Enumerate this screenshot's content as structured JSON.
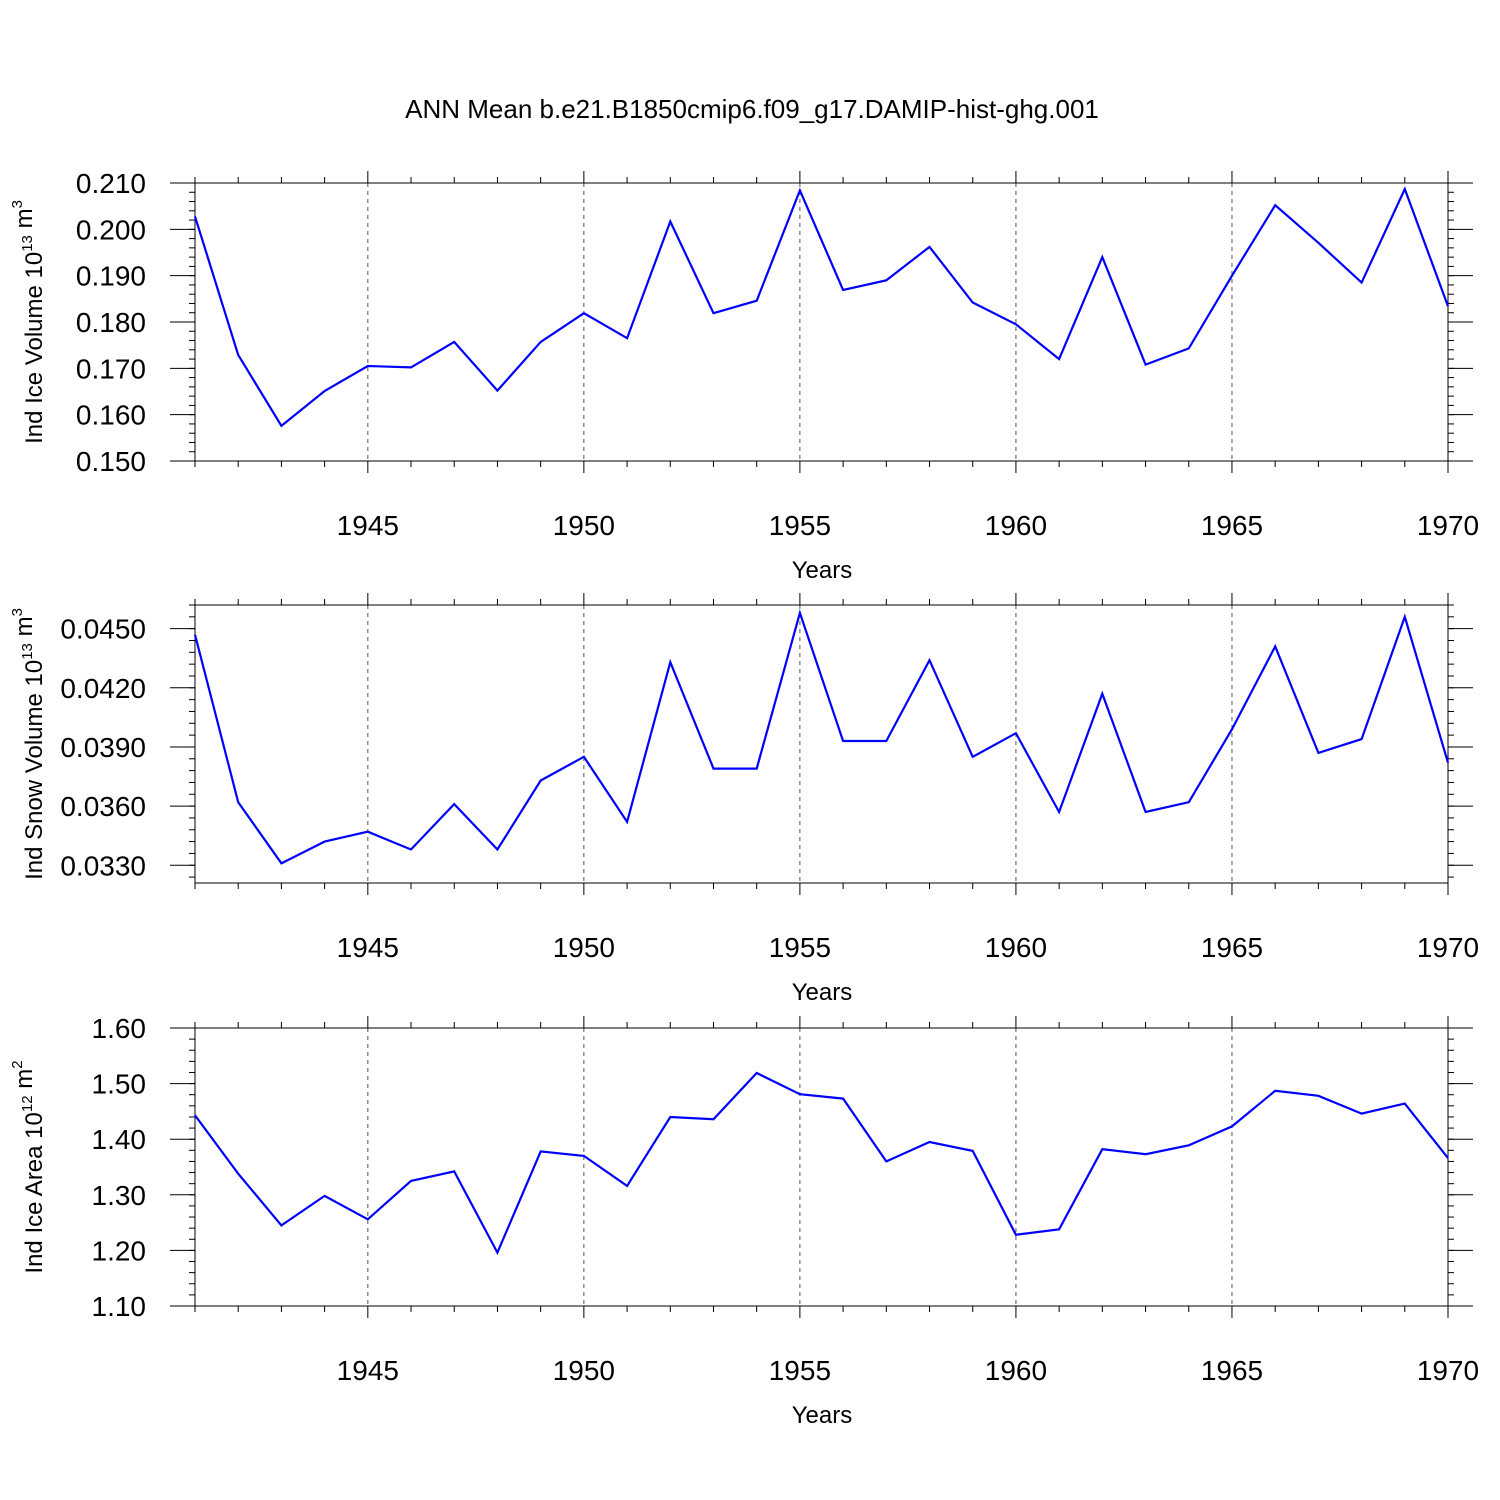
{
  "title": "ANN Mean b.e21.B1850cmip6.f09_g17.DAMIP-hist-ghg.001",
  "chart_data": [
    {
      "type": "line",
      "xlabel": "Years",
      "ylabel": {
        "main": "Ind Ice Volume 10",
        "sup": "13",
        "unit": " m",
        "unit_sup": "3"
      },
      "xlim": [
        1941,
        1970
      ],
      "ylim": [
        0.15,
        0.21
      ],
      "yticks": [
        0.15,
        0.16,
        0.17,
        0.18,
        0.19,
        0.2,
        0.21
      ],
      "ytick_labels": [
        "0.150",
        "0.160",
        "0.170",
        "0.180",
        "0.190",
        "0.200",
        "0.210"
      ],
      "yminor_step": 0.002,
      "xticks": [
        1945,
        1950,
        1955,
        1960,
        1965,
        1970
      ],
      "xtick_labels": [
        "1945",
        "1950",
        "1955",
        "1960",
        "1965",
        "1970"
      ],
      "grid": "vertical-dashed-at-major-x",
      "x": [
        1941,
        1942,
        1943,
        1944,
        1945,
        1946,
        1947,
        1948,
        1949,
        1950,
        1951,
        1952,
        1953,
        1954,
        1955,
        1956,
        1957,
        1958,
        1959,
        1960,
        1961,
        1962,
        1963,
        1964,
        1965,
        1966,
        1967,
        1968,
        1969,
        1970
      ],
      "series": [
        {
          "color": "#0000ff",
          "values": [
            0.2028,
            0.1729,
            0.1576,
            0.1651,
            0.1705,
            0.1702,
            0.1757,
            0.1652,
            0.1757,
            0.1819,
            0.1765,
            0.2017,
            0.1819,
            0.1846,
            0.2084,
            0.1869,
            0.189,
            0.1962,
            0.1842,
            0.1795,
            0.172,
            0.194,
            0.1708,
            0.1743,
            0.19,
            0.2052,
            0.1971,
            0.1885,
            0.2087,
            0.1834
          ]
        }
      ]
    },
    {
      "type": "line",
      "xlabel": "Years",
      "ylabel": {
        "main": "Ind Snow Volume 10",
        "sup": "13",
        "unit": " m",
        "unit_sup": "3"
      },
      "xlim": [
        1941,
        1970
      ],
      "ylim": [
        0.0321,
        0.0462
      ],
      "yticks": [
        0.033,
        0.036,
        0.039,
        0.042,
        0.045
      ],
      "ytick_labels": [
        "0.0330",
        "0.0360",
        "0.0390",
        "0.0420",
        "0.0450"
      ],
      "yminor_step": 0.0006,
      "xticks": [
        1945,
        1950,
        1955,
        1960,
        1965,
        1970
      ],
      "xtick_labels": [
        "1945",
        "1950",
        "1955",
        "1960",
        "1965",
        "1970"
      ],
      "grid": "vertical-dashed-at-major-x",
      "x": [
        1941,
        1942,
        1943,
        1944,
        1945,
        1946,
        1947,
        1948,
        1949,
        1950,
        1951,
        1952,
        1953,
        1954,
        1955,
        1956,
        1957,
        1958,
        1959,
        1960,
        1961,
        1962,
        1963,
        1964,
        1965,
        1966,
        1967,
        1968,
        1969,
        1970
      ],
      "series": [
        {
          "color": "#0000ff",
          "values": [
            0.0447,
            0.0362,
            0.0331,
            0.0342,
            0.0347,
            0.0338,
            0.0361,
            0.0338,
            0.0373,
            0.0385,
            0.0352,
            0.0433,
            0.0379,
            0.0379,
            0.0458,
            0.0393,
            0.0393,
            0.0434,
            0.0385,
            0.0397,
            0.0357,
            0.0417,
            0.0357,
            0.0362,
            0.0399,
            0.0441,
            0.0387,
            0.0394,
            0.0456,
            0.0382
          ]
        }
      ]
    },
    {
      "type": "line",
      "xlabel": "Years",
      "ylabel": {
        "main": "Ind Ice Area 10",
        "sup": "12",
        "unit": " m",
        "unit_sup": "2"
      },
      "xlim": [
        1941,
        1970
      ],
      "ylim": [
        1.1,
        1.6
      ],
      "yticks": [
        1.1,
        1.2,
        1.3,
        1.4,
        1.5,
        1.6
      ],
      "ytick_labels": [
        "1.10",
        "1.20",
        "1.30",
        "1.40",
        "1.50",
        "1.60"
      ],
      "yminor_step": 0.02,
      "xticks": [
        1945,
        1950,
        1955,
        1960,
        1965,
        1970
      ],
      "xtick_labels": [
        "1945",
        "1950",
        "1955",
        "1960",
        "1965",
        "1970"
      ],
      "grid": "vertical-dashed-at-major-x",
      "x": [
        1941,
        1942,
        1943,
        1944,
        1945,
        1946,
        1947,
        1948,
        1949,
        1950,
        1951,
        1952,
        1953,
        1954,
        1955,
        1956,
        1957,
        1958,
        1959,
        1960,
        1961,
        1962,
        1963,
        1964,
        1965,
        1966,
        1967,
        1968,
        1969,
        1970
      ],
      "series": [
        {
          "color": "#0000ff",
          "values": [
            1.443,
            1.338,
            1.245,
            1.298,
            1.256,
            1.325,
            1.342,
            1.196,
            1.378,
            1.37,
            1.316,
            1.44,
            1.436,
            1.519,
            1.481,
            1.473,
            1.36,
            1.395,
            1.379,
            1.228,
            1.238,
            1.382,
            1.373,
            1.389,
            1.423,
            1.487,
            1.478,
            1.446,
            1.464,
            1.366
          ]
        }
      ]
    }
  ]
}
